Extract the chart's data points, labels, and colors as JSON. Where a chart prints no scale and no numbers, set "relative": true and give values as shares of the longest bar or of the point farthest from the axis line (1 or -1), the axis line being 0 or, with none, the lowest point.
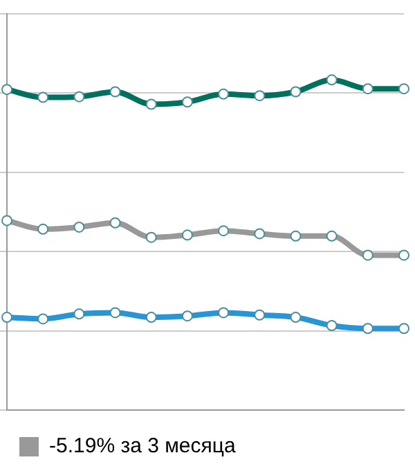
{
  "chart_data": {
    "type": "line",
    "relative": true,
    "categories": [
      null,
      null,
      null,
      null,
      null,
      null,
      null,
      null,
      null,
      null,
      null,
      null
    ],
    "series": [
      {
        "color": "#00705f",
        "values": [
          0.971,
          0.947,
          0.949,
          0.964,
          0.926,
          0.933,
          0.957,
          0.952,
          0.964,
          1.0,
          0.973,
          0.973
        ]
      },
      {
        "name": "-5.19% за 3 месяца",
        "color": "#999999",
        "values": [
          0.574,
          0.548,
          0.554,
          0.567,
          0.523,
          0.53,
          0.543,
          0.534,
          0.527,
          0.527,
          0.469,
          0.469
        ]
      },
      {
        "color": "#2a95d5",
        "values": [
          0.281,
          0.276,
          0.291,
          0.295,
          0.281,
          0.285,
          0.295,
          0.288,
          0.281,
          0.256,
          0.247,
          0.247
        ]
      }
    ],
    "grid": "y",
    "legend": "bottom",
    "marker": "circle",
    "line_style": "solid"
  }
}
